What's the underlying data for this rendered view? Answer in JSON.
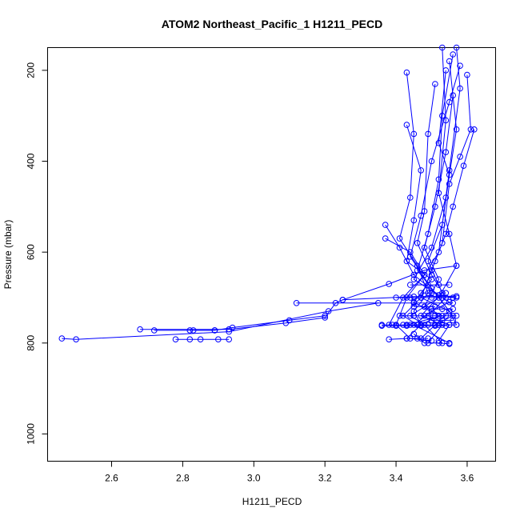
{
  "chart_data": {
    "type": "line",
    "title": "ATOM2 Northeast_Pacific_1 H1211_PECD",
    "xlabel": "H1211_PECD",
    "ylabel": "Pressure (mbar)",
    "xlim": [
      2.42,
      3.68
    ],
    "ylim": [
      1060,
      150
    ],
    "y_reversed": true,
    "grid": false,
    "legend": "none",
    "xticks": [
      2.6,
      2.8,
      3.0,
      3.2,
      3.4,
      3.6
    ],
    "yticks": [
      200,
      400,
      600,
      800,
      1000
    ],
    "colors": {
      "series": "#0000ff"
    },
    "series": [
      {
        "points": [
          [
            3.57,
            150
          ],
          [
            3.58,
            240
          ],
          [
            3.55,
            420
          ],
          [
            3.52,
            600
          ],
          [
            3.48,
            650
          ],
          [
            3.43,
            700
          ],
          [
            3.4,
            760
          ],
          [
            3.44,
            790
          ],
          [
            3.5,
            795
          ]
        ]
      },
      {
        "points": [
          [
            3.56,
            165
          ],
          [
            3.53,
            300
          ],
          [
            3.52,
            440
          ],
          [
            3.49,
            560
          ],
          [
            3.46,
            640
          ],
          [
            3.52,
            700
          ],
          [
            3.44,
            740
          ],
          [
            3.48,
            760
          ],
          [
            3.53,
            800
          ]
        ]
      },
      {
        "points": [
          [
            3.55,
            180
          ],
          [
            3.57,
            330
          ],
          [
            3.54,
            480
          ],
          [
            3.5,
            590
          ],
          [
            3.45,
            660
          ],
          [
            3.55,
            710
          ],
          [
            3.5,
            730
          ],
          [
            3.45,
            760
          ],
          [
            3.55,
            800
          ]
        ]
      },
      {
        "points": [
          [
            3.58,
            190
          ],
          [
            3.55,
            270
          ],
          [
            3.5,
            400
          ],
          [
            3.47,
            520
          ],
          [
            3.44,
            610
          ],
          [
            3.5,
            680
          ],
          [
            3.56,
            740
          ],
          [
            3.51,
            760
          ],
          [
            3.47,
            790
          ]
        ]
      },
      {
        "points": [
          [
            3.54,
            200
          ],
          [
            3.52,
            360
          ],
          [
            3.55,
            430
          ],
          [
            3.53,
            540
          ],
          [
            3.49,
            620
          ],
          [
            3.53,
            690
          ],
          [
            3.47,
            740
          ],
          [
            3.53,
            760
          ],
          [
            3.49,
            800
          ]
        ]
      },
      {
        "points": [
          [
            3.6,
            210
          ],
          [
            3.61,
            330
          ],
          [
            3.58,
            390
          ],
          [
            3.55,
            450
          ],
          [
            3.53,
            580
          ],
          [
            3.5,
            640
          ],
          [
            3.47,
            700
          ],
          [
            3.42,
            740
          ],
          [
            3.46,
            760
          ]
        ]
      },
      {
        "points": [
          [
            3.53,
            150
          ],
          [
            3.54,
            310
          ],
          [
            3.52,
            470
          ],
          [
            3.55,
            560
          ],
          [
            3.57,
            630
          ],
          [
            3.52,
            700
          ],
          [
            3.55,
            730
          ],
          [
            3.51,
            760
          ]
        ]
      },
      {
        "points": [
          [
            3.51,
            230
          ],
          [
            3.49,
            340
          ],
          [
            3.48,
            510
          ],
          [
            3.46,
            580
          ],
          [
            3.5,
            650
          ],
          [
            3.54,
            700
          ],
          [
            3.49,
            740
          ],
          [
            3.55,
            760
          ],
          [
            3.52,
            795
          ]
        ]
      },
      {
        "points": [
          [
            3.56,
            255
          ],
          [
            3.54,
            380
          ],
          [
            3.51,
            500
          ],
          [
            3.48,
            590
          ],
          [
            3.52,
            660
          ],
          [
            3.48,
            720
          ],
          [
            3.53,
            740
          ],
          [
            3.43,
            760
          ]
        ]
      },
      {
        "points": [
          [
            3.43,
            205
          ],
          [
            3.45,
            340
          ],
          [
            3.44,
            480
          ],
          [
            3.41,
            570
          ],
          [
            3.46,
            630
          ],
          [
            3.49,
            690
          ],
          [
            3.45,
            730
          ],
          [
            3.47,
            760
          ],
          [
            3.43,
            790
          ]
        ]
      },
      {
        "points": [
          [
            3.43,
            320
          ],
          [
            3.47,
            420
          ],
          [
            3.45,
            530
          ],
          [
            3.43,
            620
          ],
          [
            3.5,
            660
          ],
          [
            3.45,
            710
          ],
          [
            3.52,
            740
          ],
          [
            3.47,
            760
          ]
        ]
      },
      {
        "points": [
          [
            3.62,
            330
          ],
          [
            3.59,
            410
          ],
          [
            3.56,
            500
          ],
          [
            3.54,
            560
          ],
          [
            3.51,
            620
          ],
          [
            3.47,
            700
          ],
          [
            3.55,
            730
          ],
          [
            3.57,
            760
          ]
        ]
      },
      {
        "points": [
          [
            3.37,
            540
          ],
          [
            3.41,
            590
          ],
          [
            3.45,
            650
          ],
          [
            3.52,
            695
          ],
          [
            3.57,
            700
          ]
        ]
      },
      {
        "points": [
          [
            3.37,
            570
          ],
          [
            3.44,
            600
          ],
          [
            3.48,
            650
          ],
          [
            3.42,
            700
          ],
          [
            3.38,
            760
          ]
        ]
      },
      {
        "points": [
          [
            3.12,
            712
          ],
          [
            3.45,
            712
          ],
          [
            3.56,
            712
          ]
        ]
      },
      {
        "points": [
          [
            3.25,
            705
          ],
          [
            3.38,
            670
          ],
          [
            3.48,
            640
          ],
          [
            3.57,
            630
          ]
        ]
      },
      {
        "points": [
          [
            2.68,
            770
          ],
          [
            2.93,
            770
          ],
          [
            3.09,
            756
          ],
          [
            3.2,
            744
          ],
          [
            3.23,
            712
          ],
          [
            3.25,
            705
          ],
          [
            3.45,
            698
          ],
          [
            3.57,
            697
          ]
        ]
      },
      {
        "points": [
          [
            2.46,
            790
          ],
          [
            2.5,
            792
          ],
          [
            2.93,
            775
          ],
          [
            3.21,
            730
          ],
          [
            3.35,
            712
          ]
        ]
      },
      {
        "points": [
          [
            2.72,
            772
          ],
          [
            2.82,
            772
          ],
          [
            2.89,
            772
          ],
          [
            2.94,
            766
          ],
          [
            3.1,
            750
          ],
          [
            3.2,
            740
          ]
        ]
      },
      {
        "points": [
          [
            2.78,
            792
          ],
          [
            2.82,
            792
          ],
          [
            2.85,
            792
          ],
          [
            2.9,
            792
          ],
          [
            2.93,
            792
          ]
        ]
      },
      {
        "points": [
          [
            2.83,
            772
          ],
          [
            2.89,
            772
          ]
        ]
      },
      {
        "points": [
          [
            3.36,
            760
          ],
          [
            3.39,
            760
          ],
          [
            3.42,
            760
          ],
          [
            3.44,
            760
          ],
          [
            3.46,
            760
          ],
          [
            3.49,
            760
          ],
          [
            3.52,
            760
          ],
          [
            3.55,
            760
          ],
          [
            3.57,
            760
          ]
        ]
      },
      {
        "points": [
          [
            3.36,
            762
          ],
          [
            3.4,
            762
          ],
          [
            3.43,
            762
          ],
          [
            3.47,
            762
          ],
          [
            3.51,
            762
          ],
          [
            3.54,
            762
          ]
        ]
      },
      {
        "points": [
          [
            3.41,
            740
          ],
          [
            3.45,
            740
          ],
          [
            3.48,
            740
          ],
          [
            3.51,
            740
          ],
          [
            3.54,
            740
          ],
          [
            3.57,
            740
          ]
        ]
      },
      {
        "points": [
          [
            3.4,
            700
          ],
          [
            3.44,
            700
          ],
          [
            3.47,
            700
          ],
          [
            3.5,
            700
          ],
          [
            3.53,
            700
          ],
          [
            3.56,
            700
          ]
        ]
      },
      {
        "points": [
          [
            3.38,
            792
          ],
          [
            3.43,
            790
          ],
          [
            3.46,
            790
          ],
          [
            3.49,
            790
          ]
        ]
      },
      {
        "points": [
          [
            3.45,
            780
          ],
          [
            3.48,
            800
          ],
          [
            3.52,
            800
          ],
          [
            3.55,
            802
          ]
        ]
      },
      {
        "points": [
          [
            3.5,
            725
          ],
          [
            3.53,
            725
          ],
          [
            3.56,
            725
          ]
        ]
      },
      {
        "points": [
          [
            3.44,
            672
          ],
          [
            3.49,
            672
          ],
          [
            3.52,
            672
          ],
          [
            3.55,
            672
          ]
        ]
      },
      {
        "points": [
          [
            3.47,
            690
          ],
          [
            3.5,
            690
          ],
          [
            3.54,
            690
          ]
        ]
      },
      {
        "points": [
          [
            3.5,
            750
          ],
          [
            3.53,
            750
          ],
          [
            3.56,
            750
          ]
        ]
      },
      {
        "points": [
          [
            3.45,
            720
          ],
          [
            3.48,
            720
          ],
          [
            3.51,
            720
          ]
        ]
      }
    ]
  }
}
